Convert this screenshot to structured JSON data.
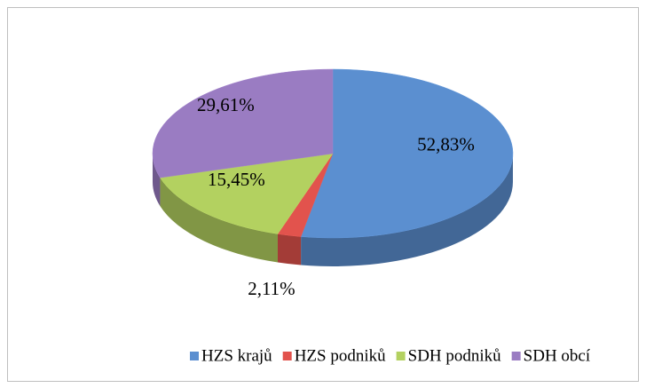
{
  "chart_data": {
    "type": "pie",
    "categories": [
      "HZS krajů",
      "HZS podniků",
      "SDH podniků",
      "SDH obcí"
    ],
    "values": [
      52.83,
      2.11,
      15.45,
      29.61
    ],
    "value_labels": [
      "52,83%",
      "2,11%",
      "15,45%",
      "29,61%"
    ],
    "colors": [
      "#5b8fd0",
      "#e2534d",
      "#b3d160",
      "#9a7cc2"
    ],
    "legend": "bottom"
  }
}
